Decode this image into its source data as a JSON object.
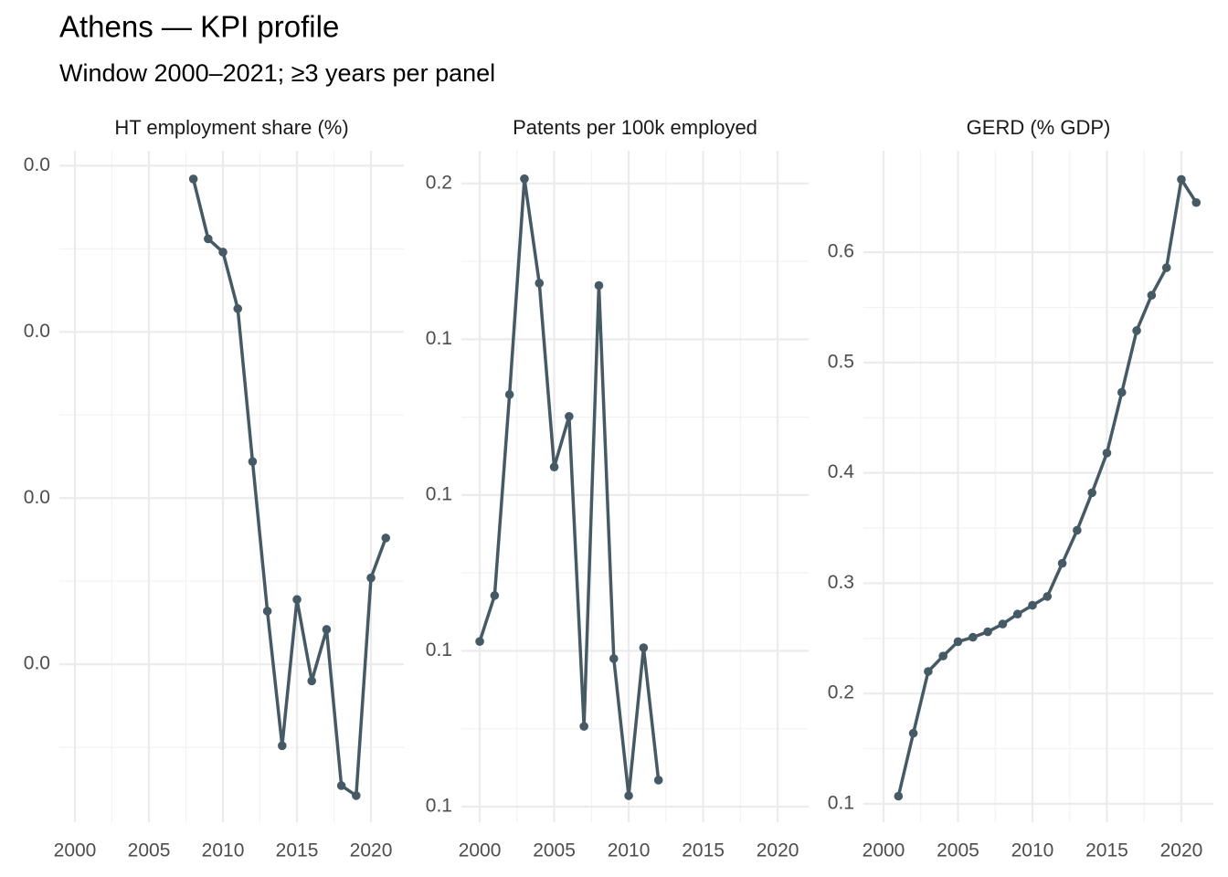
{
  "title": "Athens — KPI profile",
  "subtitle": "Window 2000–2021; ≥3 years per panel",
  "chart_data": [
    {
      "type": "line",
      "title": "HT employment share (%)",
      "color": "#455a64",
      "grid": true,
      "x": [
        2008,
        2009,
        2010,
        2011,
        2012,
        2013,
        2014,
        2015,
        2016,
        2017,
        2018,
        2019,
        2020,
        2021
      ],
      "values": [
        0.0392,
        0.0356,
        0.0348,
        0.0314,
        0.0222,
        0.0132,
        0.0051,
        0.0139,
        0.009,
        0.0121,
        0.0027,
        0.0021,
        0.0152,
        0.0176
      ],
      "xlim": [
        1998.95,
        2022.22
      ],
      "xticks": [
        2000,
        2005,
        2010,
        2015,
        2020
      ],
      "ylim": [
        0.0005,
        0.0409
      ],
      "yticks": [
        {
          "value": 0.01,
          "label": "0.0"
        },
        {
          "value": 0.02,
          "label": "0.0"
        },
        {
          "value": 0.03,
          "label": "0.0"
        },
        {
          "value": 0.04,
          "label": "0.0"
        }
      ]
    },
    {
      "type": "line",
      "title": "Patents per 100k employed",
      "color": "#455a64",
      "grid": true,
      "x": [
        2000,
        2001,
        2002,
        2003,
        2004,
        2005,
        2006,
        2007,
        2008,
        2009,
        2010,
        2011,
        2012
      ],
      "values": [
        0.1012,
        0.1071,
        0.1329,
        0.1606,
        0.1472,
        0.1236,
        0.1301,
        0.0903,
        0.1469,
        0.099,
        0.0814,
        0.1004,
        0.0834
      ],
      "xlim": [
        1998.77,
        2022.08
      ],
      "xticks": [
        2000,
        2005,
        2010,
        2015,
        2020
      ],
      "ylim": [
        0.078,
        0.1642
      ],
      "yticks": [
        {
          "value": 0.08,
          "label": "0.1"
        },
        {
          "value": 0.1,
          "label": "0.1"
        },
        {
          "value": 0.12,
          "label": "0.1"
        },
        {
          "value": 0.14,
          "label": "0.1"
        },
        {
          "value": 0.16,
          "label": "0.2"
        }
      ]
    },
    {
      "type": "line",
      "title": "GERD (% GDP)",
      "color": "#455a64",
      "grid": true,
      "x": [
        2001,
        2002,
        2003,
        2004,
        2005,
        2006,
        2007,
        2008,
        2009,
        2010,
        2011,
        2012,
        2013,
        2014,
        2015,
        2016,
        2017,
        2018,
        2019,
        2020,
        2021
      ],
      "values": [
        0.107,
        0.164,
        0.22,
        0.234,
        0.247,
        0.251,
        0.256,
        0.263,
        0.272,
        0.28,
        0.288,
        0.318,
        0.348,
        0.382,
        0.418,
        0.473,
        0.529,
        0.561,
        0.586,
        0.666,
        0.645
      ],
      "xlim": [
        1998.65,
        2022.15
      ],
      "xticks": [
        2000,
        2005,
        2010,
        2015,
        2020
      ],
      "ylim": [
        0.0834,
        0.692
      ],
      "yticks": [
        0.1,
        0.2,
        0.3,
        0.4,
        0.5,
        0.6
      ]
    }
  ]
}
